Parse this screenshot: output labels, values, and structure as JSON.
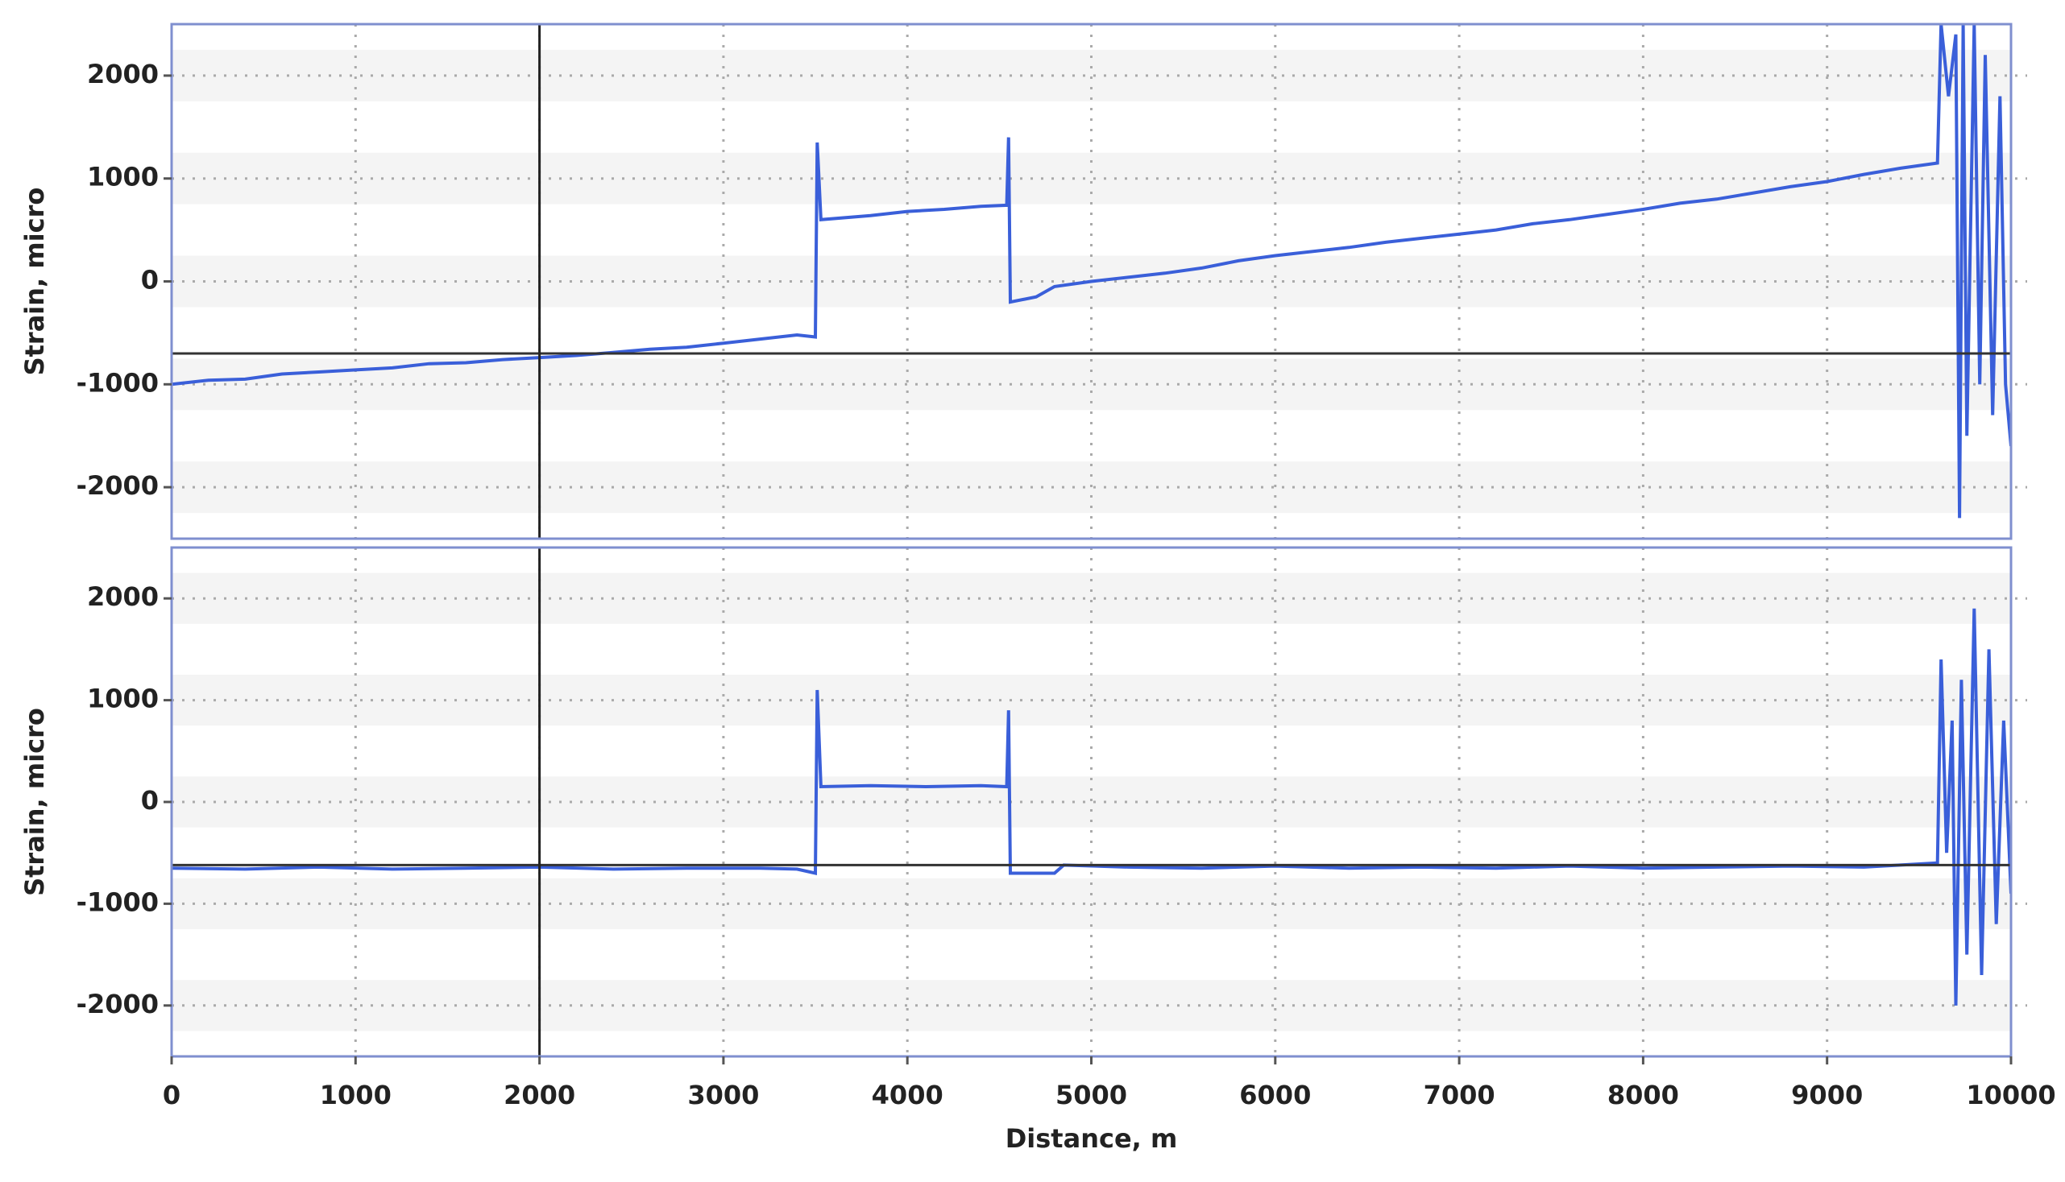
{
  "chart_data": [
    {
      "type": "line",
      "y_label": "Strain, micro",
      "color": "#3a5fd9",
      "x": [
        0,
        200,
        400,
        600,
        800,
        1000,
        1200,
        1400,
        1600,
        1800,
        2000,
        2200,
        2400,
        2600,
        2800,
        3000,
        3200,
        3400,
        3500,
        3510,
        3530,
        3800,
        4000,
        4200,
        4400,
        4540,
        4550,
        4560,
        4700,
        4800,
        5000,
        5200,
        5400,
        5600,
        5800,
        6000,
        6200,
        6400,
        6600,
        6800,
        7000,
        7200,
        7400,
        7600,
        7800,
        8000,
        8200,
        8400,
        8600,
        8800,
        9000,
        9200,
        9400,
        9600,
        9620,
        9660,
        9700,
        9720,
        9740,
        9760,
        9800,
        9830,
        9860,
        9900,
        9940,
        9970,
        10000
      ],
      "values": [
        -1000,
        -960,
        -950,
        -900,
        -880,
        -860,
        -840,
        -800,
        -790,
        -760,
        -740,
        -720,
        -690,
        -660,
        -640,
        -600,
        -560,
        -520,
        -540,
        1350,
        600,
        640,
        680,
        700,
        730,
        740,
        1400,
        -200,
        -150,
        -50,
        0,
        40,
        80,
        130,
        200,
        250,
        290,
        330,
        380,
        420,
        460,
        500,
        560,
        600,
        650,
        700,
        760,
        800,
        860,
        920,
        970,
        1040,
        1100,
        1150,
        2500,
        1800,
        2400,
        -2300,
        2500,
        -1500,
        2500,
        -1000,
        2200,
        -1300,
        1800,
        -1000,
        -1600
      ],
      "xlim": [
        0,
        10000
      ],
      "xticks": [
        0,
        1000,
        2000,
        3000,
        4000,
        5000,
        6000,
        7000,
        8000,
        9000,
        10000
      ],
      "ylim": [
        -2500,
        2500
      ],
      "yticks": [
        -2000,
        -1000,
        0,
        1000,
        2000
      ],
      "cursor_x": 2000,
      "cursor_y": -700,
      "grid": true
    },
    {
      "type": "line",
      "y_label": "Strain, micro",
      "x_label": "Distance, m",
      "color": "#3a5fd9",
      "x": [
        0,
        400,
        800,
        1200,
        1600,
        2000,
        2400,
        2800,
        3200,
        3400,
        3500,
        3510,
        3530,
        3800,
        4100,
        4400,
        4540,
        4550,
        4560,
        4800,
        4850,
        5200,
        5600,
        6000,
        6400,
        6800,
        7200,
        7600,
        8000,
        8400,
        8800,
        9200,
        9600,
        9620,
        9650,
        9680,
        9700,
        9730,
        9760,
        9800,
        9840,
        9880,
        9920,
        9960,
        10000
      ],
      "values": [
        -650,
        -660,
        -640,
        -660,
        -650,
        -640,
        -660,
        -650,
        -650,
        -660,
        -700,
        1100,
        150,
        160,
        150,
        160,
        150,
        900,
        -700,
        -700,
        -620,
        -640,
        -650,
        -630,
        -650,
        -640,
        -650,
        -630,
        -650,
        -640,
        -630,
        -640,
        -600,
        1400,
        -500,
        800,
        -2000,
        1200,
        -1500,
        1900,
        -1700,
        1500,
        -1200,
        800,
        -900
      ],
      "xlim": [
        0,
        10000
      ],
      "xticks": [
        0,
        1000,
        2000,
        3000,
        4000,
        5000,
        6000,
        7000,
        8000,
        9000,
        10000
      ],
      "ylim": [
        -2500,
        2500
      ],
      "yticks": [
        -2000,
        -1000,
        0,
        1000,
        2000
      ],
      "cursor_x": 2000,
      "cursor_y": -620,
      "grid": true
    }
  ]
}
